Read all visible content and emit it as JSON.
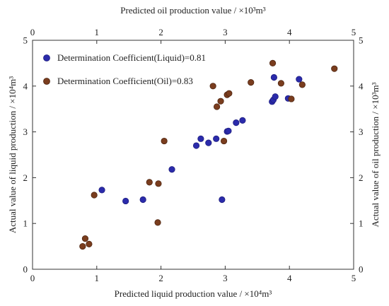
{
  "chart_data": {
    "type": "scatter",
    "axes": {
      "bottom": {
        "label": "Predicted liquid production value / ×10⁴m³",
        "range": [
          0,
          5
        ],
        "ticks": [
          0,
          1,
          2,
          3,
          4,
          5
        ]
      },
      "top": {
        "label": "Predicted oil production value / ×10³m³",
        "range": [
          0,
          5
        ],
        "ticks": [
          0,
          1,
          2,
          3,
          4,
          5
        ]
      },
      "left": {
        "label": "Actual value of liquid production / ×10⁴m³",
        "range": [
          0,
          5
        ],
        "ticks": [
          0,
          1,
          2,
          3,
          4,
          5
        ]
      },
      "right": {
        "label": "Actual value of oil production / ×10³m³",
        "range": [
          0,
          5
        ],
        "ticks": [
          0,
          1,
          2,
          3,
          4,
          5
        ]
      }
    },
    "grid": false,
    "legend_position": "top-left",
    "series": [
      {
        "name": "Determination Coefficient(Liquid)=0.81",
        "color": "#2b2bab",
        "marker": "circle",
        "x_axis": "bottom",
        "y_axis": "left",
        "x": [
          1.08,
          1.45,
          1.72,
          2.17,
          2.55,
          2.62,
          2.74,
          2.86,
          2.95,
          3.03,
          3.05,
          3.17,
          3.27,
          3.73,
          3.75,
          3.76,
          3.78,
          3.98,
          4.15
        ],
        "y": [
          1.73,
          1.49,
          1.52,
          2.18,
          2.7,
          2.85,
          2.76,
          2.85,
          1.52,
          3.01,
          3.02,
          3.2,
          3.25,
          3.66,
          3.7,
          4.19,
          3.77,
          3.73,
          4.15
        ]
      },
      {
        "name": "Determination Coefficient(Oil)=0.83",
        "color": "#7a3d1e",
        "marker": "circle",
        "x_axis": "top",
        "y_axis": "right",
        "x": [
          0.78,
          0.82,
          0.88,
          0.96,
          1.82,
          1.95,
          1.96,
          2.05,
          2.81,
          2.87,
          2.93,
          2.98,
          3.03,
          3.06,
          3.4,
          3.74,
          3.87,
          4.03,
          4.2,
          4.7
        ],
        "y": [
          0.5,
          0.67,
          0.55,
          1.62,
          1.9,
          1.02,
          1.87,
          2.8,
          4.0,
          3.55,
          3.67,
          2.8,
          3.81,
          3.84,
          4.08,
          4.5,
          4.06,
          3.72,
          4.03,
          4.38
        ]
      }
    ]
  }
}
